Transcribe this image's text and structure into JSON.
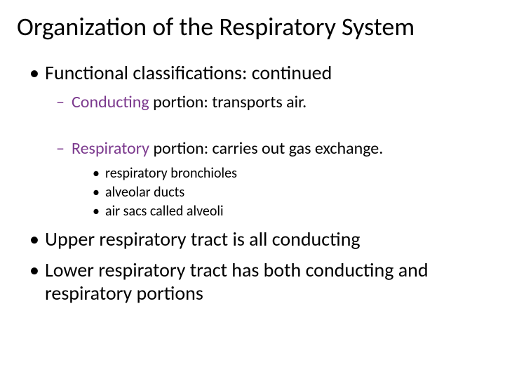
{
  "colors": {
    "background": "#ffffff",
    "text": "#000000",
    "accent": "#7c3a8e"
  },
  "fonts": {
    "title_size": 36,
    "l1_size": 28,
    "l2_size": 24,
    "l3_size": 20,
    "family": "Calibri"
  },
  "title": "Organization of the Respiratory System",
  "bullets": {
    "l1a": "Functional classifications: continued",
    "l2a_key": "Conducting",
    "l2a_rest": " portion: transports air.",
    "l2b_key": "Respiratory",
    "l2b_rest": " portion: carries out gas exchange.",
    "l3a": "respiratory bronchioles",
    "l3b": "alveolar ducts",
    "l3c": "air sacs called alveoli",
    "l1b": "Upper respiratory tract is all conducting",
    "l1c": "Lower respiratory tract has both conducting and respiratory portions"
  }
}
